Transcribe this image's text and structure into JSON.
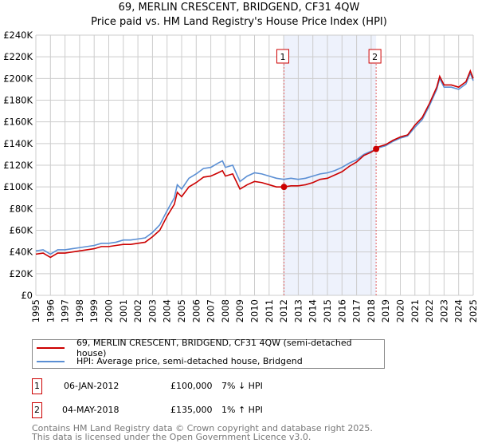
{
  "title": "69, MERLIN CRESCENT, BRIDGEND, CF31 4QW",
  "subtitle": "Price paid vs. HM Land Registry's House Price Index (HPI)",
  "chart_data": {
    "type": "line",
    "title": "69, MERLIN CRESCENT, BRIDGEND, CF31 4QW",
    "subtitle": "Price paid vs. HM Land Registry's House Price Index (HPI)",
    "xlim": [
      1995,
      2025
    ],
    "ylim": [
      0,
      240000
    ],
    "x_ticks": [
      "1995",
      "1996",
      "1997",
      "1998",
      "1999",
      "2000",
      "2001",
      "2002",
      "2003",
      "2004",
      "2005",
      "2006",
      "2007",
      "2008",
      "2009",
      "2010",
      "2011",
      "2012",
      "2013",
      "2014",
      "2015",
      "2016",
      "2017",
      "2018",
      "2019",
      "2020",
      "2021",
      "2022",
      "2023",
      "2024",
      "2025"
    ],
    "y_ticks": [
      "£0",
      "£20K",
      "£40K",
      "£60K",
      "£80K",
      "£100K",
      "£120K",
      "£140K",
      "£160K",
      "£180K",
      "£200K",
      "£220K",
      "£240K"
    ],
    "grid": true,
    "shaded_region": [
      2012.02,
      2018.34
    ],
    "x": [
      1995,
      1995.5,
      1996,
      1996.5,
      1997,
      1997.5,
      1998,
      1998.5,
      1999,
      1999.5,
      2000,
      2000.5,
      2001,
      2001.5,
      2002,
      2002.5,
      2003,
      2003.5,
      2004,
      2004.5,
      2004.7,
      2005,
      2005.5,
      2006,
      2006.5,
      2007,
      2007.5,
      2007.8,
      2008,
      2008.5,
      2009,
      2009.5,
      2010,
      2010.5,
      2011,
      2011.5,
      2012,
      2012.5,
      2013,
      2013.5,
      2014,
      2014.5,
      2015,
      2015.5,
      2016,
      2016.5,
      2017,
      2017.5,
      2018,
      2018.34,
      2018.5,
      2019,
      2019.5,
      2020,
      2020.5,
      2021,
      2021.5,
      2022,
      2022.5,
      2022.7,
      2023,
      2023.5,
      2024,
      2024.5,
      2024.8,
      2025
    ],
    "series": [
      {
        "name": "69, MERLIN CRESCENT, BRIDGEND, CF31 4QW (semi-detached house)",
        "color": "#cc0000",
        "values": [
          38,
          39,
          35,
          39,
          39,
          40,
          41,
          42,
          43,
          45,
          45,
          46,
          47,
          47,
          48,
          49,
          54,
          60,
          73,
          84,
          95,
          91,
          100,
          104,
          109,
          110,
          113,
          115,
          110,
          112,
          98,
          102,
          105,
          104,
          102,
          100,
          100,
          101,
          101,
          102,
          104,
          107,
          108,
          111,
          114,
          119,
          123,
          129,
          132,
          135,
          137,
          139,
          143,
          146,
          148,
          157,
          164,
          177,
          192,
          202,
          194,
          194,
          192,
          197,
          207,
          200
        ]
      },
      {
        "name": "HPI: Average price, semi-detached house, Bridgend",
        "color": "#5b8fd4",
        "values": [
          41,
          42,
          38,
          42,
          42,
          43,
          44,
          45,
          46,
          48,
          48,
          49,
          51,
          51,
          52,
          53,
          58,
          65,
          78,
          90,
          102,
          98,
          108,
          112,
          117,
          118,
          122,
          124,
          118,
          120,
          105,
          110,
          113,
          112,
          110,
          108,
          107,
          108,
          107,
          108,
          110,
          112,
          113,
          115,
          118,
          122,
          125,
          130,
          133,
          134,
          136,
          138,
          142,
          145,
          147,
          155,
          162,
          175,
          190,
          200,
          192,
          192,
          190,
          195,
          205,
          198
        ]
      }
    ],
    "value_unit": "thousand GBP",
    "markers": [
      {
        "label": "1",
        "x": 2012.02,
        "y": 100
      },
      {
        "label": "2",
        "x": 2018.34,
        "y": 135
      }
    ]
  },
  "legend": {
    "red": "69, MERLIN CRESCENT, BRIDGEND, CF31 4QW (semi-detached house)",
    "blue": "HPI: Average price, semi-detached house, Bridgend"
  },
  "sales": [
    {
      "num": "1",
      "date": "06-JAN-2012",
      "price": "£100,000",
      "hpi": "7% ↓ HPI"
    },
    {
      "num": "2",
      "date": "04-MAY-2018",
      "price": "£135,000",
      "hpi": "1% ↑ HPI"
    }
  ],
  "footer": {
    "line1": "Contains HM Land Registry data © Crown copyright and database right 2025.",
    "line2": "This data is licensed under the Open Government Licence v3.0."
  }
}
